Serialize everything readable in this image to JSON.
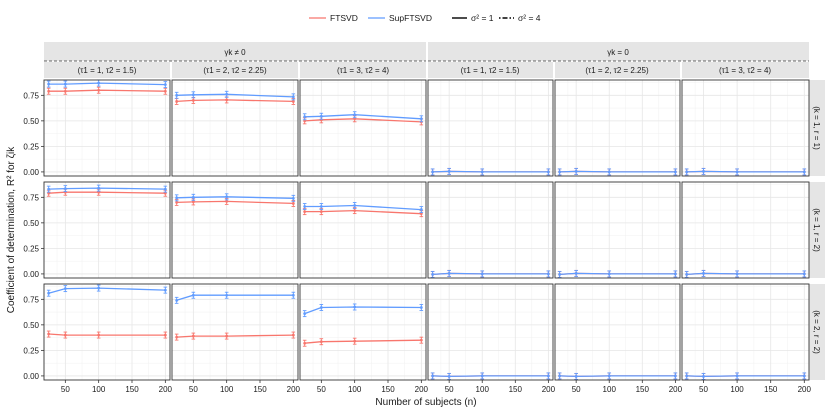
{
  "legend": {
    "models": [
      {
        "name": "FTSVD",
        "color": "#f8766d"
      },
      {
        "name": "SupFTSVD",
        "color": "#619cff"
      }
    ],
    "noise": [
      {
        "label": "σ² = 1",
        "linetype": "solid"
      },
      {
        "label": "σ² = 4",
        "linetype": "dotdash"
      }
    ]
  },
  "strips": {
    "top_groups": [
      "γk ≠ 0",
      "γk = 0"
    ],
    "columns": [
      "(τ1 = 1, τ2 = 1.5)",
      "(τ1 = 2, τ2 = 2.25)",
      "(τ1 = 3, τ2 = 4)",
      "(τ1 = 1, τ2 = 1.5)",
      "(τ1 = 2, τ2 = 2.25)",
      "(τ1 = 3, τ2 = 4)"
    ],
    "rows": [
      "(k = 1, r = 1)",
      "(k = 1, r = 2)",
      "(k = 2, r = 2)"
    ]
  },
  "chart_data": {
    "type": "line",
    "xlabel": "Number of subjects (n)",
    "ylabel": "Coefficient of determination, R² for ζik",
    "x": [
      25,
      50,
      100,
      200
    ],
    "xticks": [
      50,
      100,
      150,
      200
    ],
    "xlim": [
      18,
      207
    ],
    "ylim": [
      -0.04,
      0.9
    ],
    "yticks": [
      0.0,
      0.25,
      0.5,
      0.75
    ],
    "ytick_labels": [
      "0.00",
      "0.25",
      "0.50",
      "0.75"
    ],
    "grid": true,
    "legend_position": "top",
    "panels": [
      {
        "row": 0,
        "col": 0,
        "series": [
          {
            "name": "FTSVD",
            "values": [
              0.79,
              0.79,
              0.8,
              0.79
            ]
          },
          {
            "name": "SupFTSVD",
            "values": [
              0.86,
              0.86,
              0.87,
              0.855
            ]
          }
        ]
      },
      {
        "row": 0,
        "col": 1,
        "series": [
          {
            "name": "FTSVD",
            "values": [
              0.69,
              0.7,
              0.705,
              0.69
            ]
          },
          {
            "name": "SupFTSVD",
            "values": [
              0.75,
              0.755,
              0.76,
              0.735
            ]
          }
        ]
      },
      {
        "row": 0,
        "col": 2,
        "series": [
          {
            "name": "FTSVD",
            "values": [
              0.5,
              0.51,
              0.52,
              0.49
            ]
          },
          {
            "name": "SupFTSVD",
            "values": [
              0.54,
              0.545,
              0.56,
              0.52
            ]
          }
        ]
      },
      {
        "row": 0,
        "col": 3,
        "series": [
          {
            "name": "FTSVD",
            "values": [
              0.0,
              0.005,
              0.0,
              0.0
            ]
          },
          {
            "name": "SupFTSVD",
            "values": [
              0.0,
              0.005,
              0.0,
              0.0
            ]
          }
        ]
      },
      {
        "row": 0,
        "col": 4,
        "series": [
          {
            "name": "FTSVD",
            "values": [
              0.0,
              0.005,
              0.0,
              0.0
            ]
          },
          {
            "name": "SupFTSVD",
            "values": [
              0.0,
              0.005,
              0.0,
              0.0
            ]
          }
        ]
      },
      {
        "row": 0,
        "col": 5,
        "series": [
          {
            "name": "FTSVD",
            "values": [
              0.0,
              0.005,
              0.0,
              0.0
            ]
          },
          {
            "name": "SupFTSVD",
            "values": [
              0.0,
              0.005,
              0.0,
              0.0
            ]
          }
        ]
      },
      {
        "row": 1,
        "col": 0,
        "series": [
          {
            "name": "FTSVD",
            "values": [
              0.79,
              0.8,
              0.8,
              0.79
            ]
          },
          {
            "name": "SupFTSVD",
            "values": [
              0.83,
              0.835,
              0.84,
              0.83
            ]
          }
        ]
      },
      {
        "row": 1,
        "col": 1,
        "series": [
          {
            "name": "FTSVD",
            "values": [
              0.7,
              0.705,
              0.71,
              0.69
            ]
          },
          {
            "name": "SupFTSVD",
            "values": [
              0.745,
              0.75,
              0.755,
              0.74
            ]
          }
        ]
      },
      {
        "row": 1,
        "col": 2,
        "series": [
          {
            "name": "FTSVD",
            "values": [
              0.61,
              0.61,
              0.62,
              0.59
            ]
          },
          {
            "name": "SupFTSVD",
            "values": [
              0.66,
              0.66,
              0.67,
              0.63
            ]
          }
        ]
      },
      {
        "row": 1,
        "col": 3,
        "series": [
          {
            "name": "FTSVD",
            "values": [
              -0.005,
              0.005,
              0.0,
              0.0
            ]
          },
          {
            "name": "SupFTSVD",
            "values": [
              -0.005,
              0.005,
              0.0,
              0.0
            ]
          }
        ]
      },
      {
        "row": 1,
        "col": 4,
        "series": [
          {
            "name": "FTSVD",
            "values": [
              -0.005,
              0.005,
              0.0,
              0.0
            ]
          },
          {
            "name": "SupFTSVD",
            "values": [
              -0.005,
              0.005,
              0.0,
              0.0
            ]
          }
        ]
      },
      {
        "row": 1,
        "col": 5,
        "series": [
          {
            "name": "FTSVD",
            "values": [
              -0.005,
              0.005,
              0.0,
              0.0
            ]
          },
          {
            "name": "SupFTSVD",
            "values": [
              -0.005,
              0.005,
              0.0,
              0.0
            ]
          }
        ]
      },
      {
        "row": 2,
        "col": 0,
        "series": [
          {
            "name": "FTSVD",
            "values": [
              0.41,
              0.4,
              0.4,
              0.4
            ]
          },
          {
            "name": "SupFTSVD",
            "values": [
              0.81,
              0.855,
              0.86,
              0.84
            ]
          }
        ]
      },
      {
        "row": 2,
        "col": 1,
        "series": [
          {
            "name": "FTSVD",
            "values": [
              0.38,
              0.39,
              0.39,
              0.4
            ]
          },
          {
            "name": "SupFTSVD",
            "values": [
              0.74,
              0.79,
              0.79,
              0.79
            ]
          }
        ]
      },
      {
        "row": 2,
        "col": 2,
        "series": [
          {
            "name": "FTSVD",
            "values": [
              0.32,
              0.335,
              0.34,
              0.35
            ]
          },
          {
            "name": "SupFTSVD",
            "values": [
              0.61,
              0.67,
              0.675,
              0.67
            ]
          }
        ]
      },
      {
        "row": 2,
        "col": 3,
        "series": [
          {
            "name": "FTSVD",
            "values": [
              0.0,
              -0.005,
              0.0,
              0.0
            ]
          },
          {
            "name": "SupFTSVD",
            "values": [
              0.0,
              -0.005,
              0.0,
              0.0
            ]
          }
        ]
      },
      {
        "row": 2,
        "col": 4,
        "series": [
          {
            "name": "FTSVD",
            "values": [
              0.0,
              -0.005,
              0.0,
              0.0
            ]
          },
          {
            "name": "SupFTSVD",
            "values": [
              0.0,
              -0.005,
              0.0,
              0.0
            ]
          }
        ]
      },
      {
        "row": 2,
        "col": 5,
        "series": [
          {
            "name": "FTSVD",
            "values": [
              0.0,
              -0.005,
              0.0,
              0.0
            ]
          },
          {
            "name": "SupFTSVD",
            "values": [
              0.0,
              -0.005,
              0.0,
              0.0
            ]
          }
        ]
      }
    ]
  }
}
